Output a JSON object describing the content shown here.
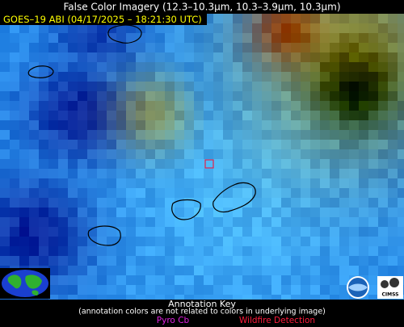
{
  "header": {
    "title": "False Color Imagery (12.3–10.3µm, 10.3–3.9µm, 10.3µm)",
    "subtitle": "GOES–19 ABI (04/17/2025 – 18:21:30 UTC)"
  },
  "logos": {
    "right": "CIMSS"
  },
  "key": {
    "title": "Annotation Key",
    "note": "(annotation colors are not related to colors in underlying image)",
    "items": [
      "Pyro Cb",
      "Wildfire Detection"
    ]
  }
}
